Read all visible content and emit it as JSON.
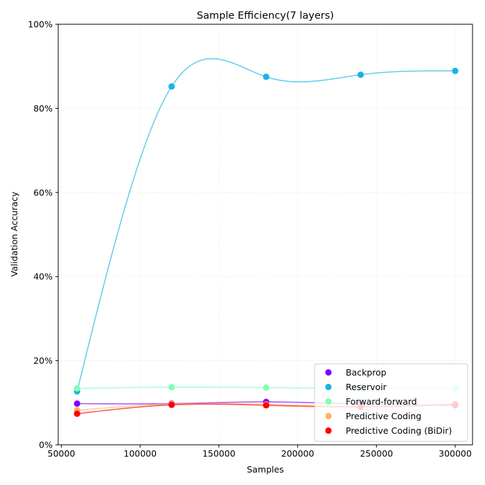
{
  "chart_data": {
    "type": "scatter",
    "title": "Sample Efficiency(7 layers)",
    "xlabel": "Samples",
    "ylabel": "Validation Accuracy",
    "xlim": [
      48000,
      311000
    ],
    "ylim": [
      0,
      1
    ],
    "x_ticks": [
      50000,
      100000,
      150000,
      200000,
      250000,
      300000
    ],
    "y_ticks": [
      0,
      0.2,
      0.4,
      0.6,
      0.8,
      1.0
    ],
    "x_tick_labels": [
      "50000",
      "100000",
      "150000",
      "200000",
      "250000",
      "300000"
    ],
    "y_tick_labels": [
      "0%",
      "20%",
      "40%",
      "60%",
      "80%",
      "100%"
    ],
    "grid": true,
    "legend_position": "bottom-right",
    "x": [
      60000,
      120000,
      180000,
      240000,
      300000
    ],
    "series": [
      {
        "name": "Backprop",
        "color": "#8000ff",
        "values": [
          0.098,
          0.098,
          0.102,
          0.097,
          0.094
        ]
      },
      {
        "name": "Reservoir",
        "color": "#1ab2e8",
        "values": [
          0.127,
          0.852,
          0.875,
          0.88,
          0.889
        ]
      },
      {
        "name": "Forward-forward",
        "color": "#80ffb4",
        "values": [
          0.134,
          0.137,
          0.136,
          0.134,
          0.134
        ]
      },
      {
        "name": "Predictive Coding",
        "color": "#ffb360",
        "values": [
          0.082,
          0.097,
          0.096,
          0.092,
          0.097
        ]
      },
      {
        "name": "Predictive Coding (BiDir)",
        "color": "#ff0000",
        "values": [
          0.074,
          0.095,
          0.094,
          0.09,
          0.096
        ]
      }
    ]
  }
}
